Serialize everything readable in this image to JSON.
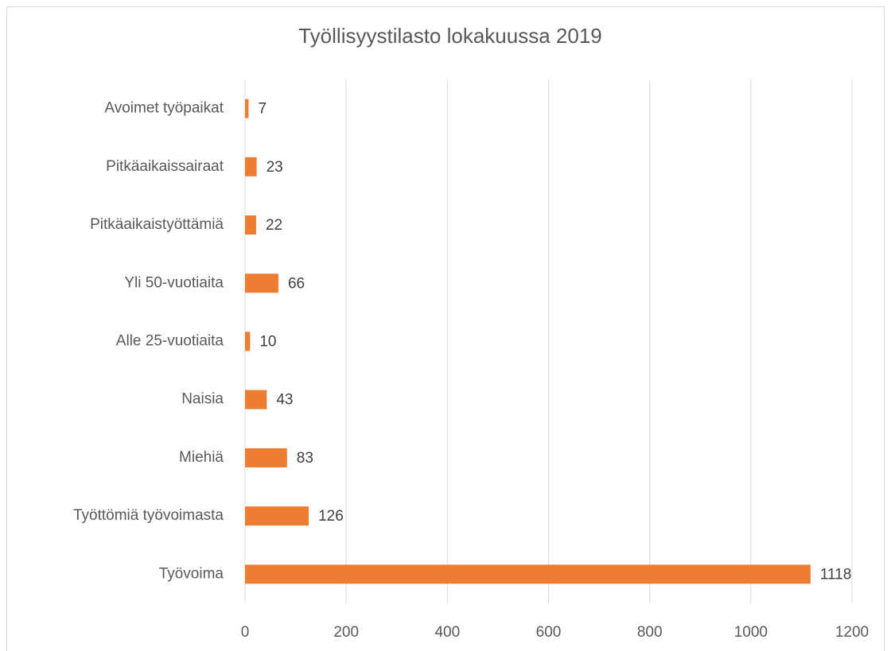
{
  "chart_data": {
    "type": "bar",
    "orientation": "horizontal",
    "title": "Työllisyystilasto lokakuussa 2019",
    "categories": [
      "Avoimet työpaikat",
      "Pitkäaikaissairaat",
      "Pitkäaikaistyöttämiä",
      "Yli 50-vuotiaita",
      "Alle 25-vuotiaita",
      "Naisia",
      "Miehiä",
      "Työttömiä työvoimasta",
      "Työvoima"
    ],
    "values": [
      7,
      23,
      22,
      66,
      10,
      43,
      83,
      126,
      1118
    ],
    "color": "#ed7d31",
    "xlim": [
      0,
      1200
    ],
    "xticks": [
      0,
      200,
      400,
      600,
      800,
      1000,
      1200
    ],
    "grid": true
  }
}
